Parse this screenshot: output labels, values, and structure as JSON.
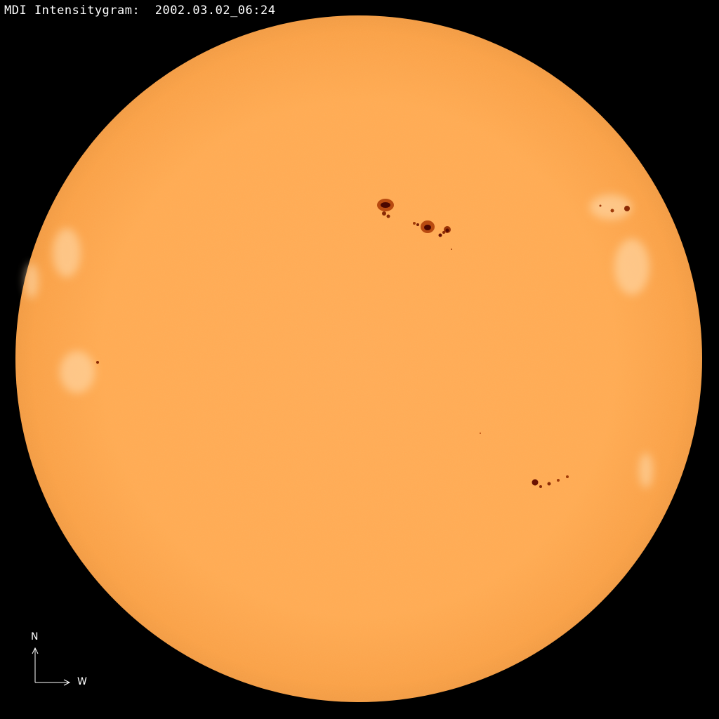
{
  "title": {
    "instrument": "MDI Intensitygram:",
    "timestamp": "2002.03.02_06:24"
  },
  "compass": {
    "north_label": "N",
    "west_label": "W"
  },
  "colors": {
    "background": "#000000",
    "disk": "#ffab55",
    "limb": "#f39a40",
    "sunspot_umbra": "#5a0a00",
    "sunspot_penumbra": "#b84a10",
    "faculae": "#ffd9a8"
  }
}
